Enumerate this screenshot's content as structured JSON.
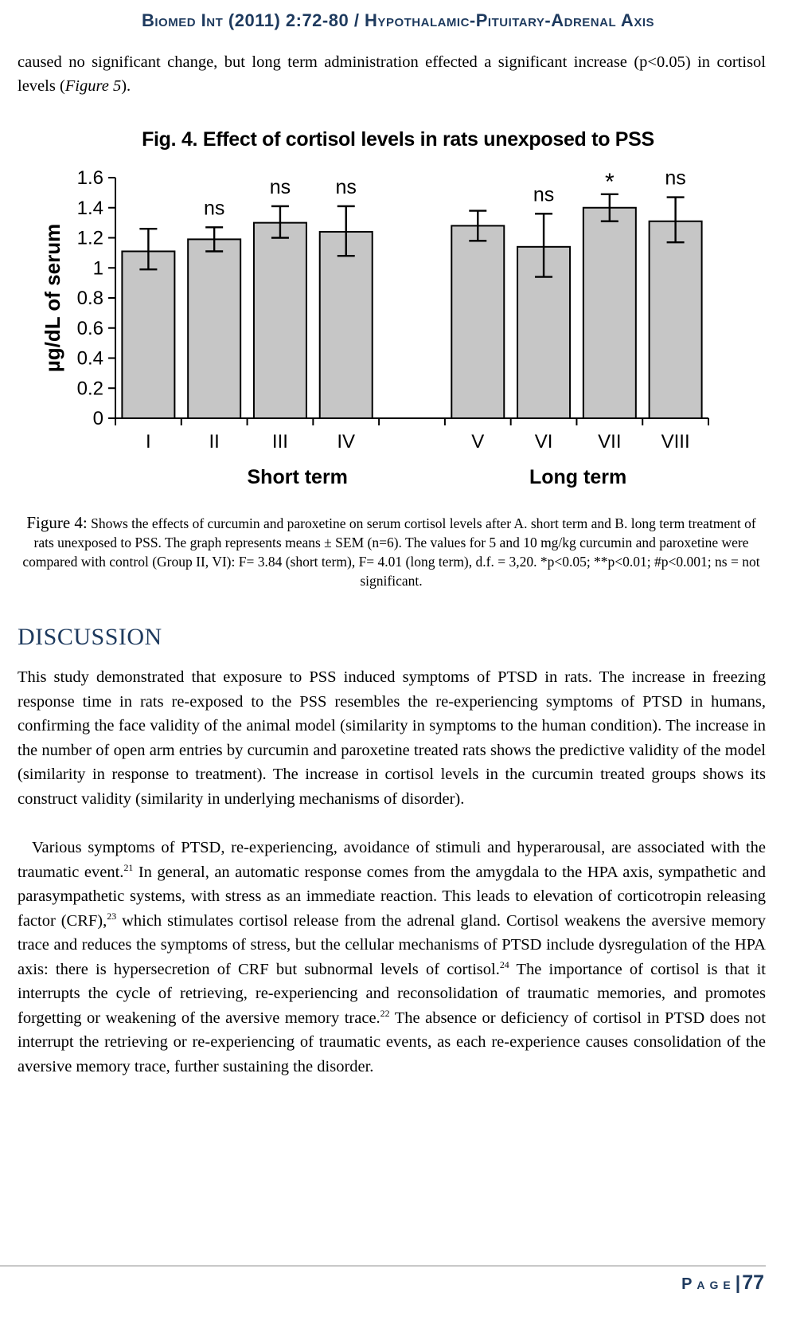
{
  "header": {
    "journal_line": "Biomed Int (2011) 2:72-80 / Hypothalamic-Pituitary-Adrenal Axis"
  },
  "intro_paragraph": [
    {
      "t": "caused no significant change, but long term administration effected a significant increase (p<0.05) in cortisol levels ("
    },
    {
      "t": "Figure 5",
      "s": "i"
    },
    {
      "t": ")."
    }
  ],
  "chart_data": {
    "type": "bar",
    "title": "Fig. 4. Effect of cortisol levels in rats unexposed to PSS",
    "xlabel": "",
    "ylabel": "µg/dL of serum",
    "ylim": [
      0,
      1.6
    ],
    "ytick_labels": [
      "0",
      "0.2",
      "0.4",
      "0.6",
      "0.8",
      "1",
      "1.2",
      "1.4",
      "1.6"
    ],
    "categories": [
      "I",
      "II",
      "III",
      "IV",
      "V",
      "VI",
      "VII",
      "VIII"
    ],
    "values": [
      1.11,
      1.19,
      1.3,
      1.24,
      1.28,
      1.14,
      1.4,
      1.31
    ],
    "error_low": [
      0.99,
      1.11,
      1.2,
      1.08,
      1.18,
      0.94,
      1.31,
      1.17
    ],
    "error_high": [
      1.26,
      1.27,
      1.41,
      1.41,
      1.38,
      1.36,
      1.49,
      1.47
    ],
    "sig_labels": [
      "",
      "ns",
      "ns",
      "ns",
      "",
      "ns",
      "*",
      "ns"
    ],
    "groups": [
      {
        "label": "Short term",
        "indices": [
          0,
          1,
          2,
          3
        ]
      },
      {
        "label": "Long term",
        "indices": [
          4,
          5,
          6,
          7
        ]
      }
    ],
    "grid": false,
    "legend": false,
    "bar_fill": "#c6c6c6",
    "bar_stroke": "#000000"
  },
  "figure_caption": [
    {
      "t": "Figure 4:",
      "s": "lead"
    },
    {
      "t": " Shows the effects of curcumin and paroxetine on serum cortisol levels after A. short term and B. long term treatment of rats unexposed to PSS. The graph represents means ± SEM (n=6). The values for 5 and 10 mg/kg curcumin and paroxetine were compared with control (Group II, VI): F= 3.84 (short term), F= 4.01 (long term), d.f. = 3,20. *p<0.05; **p<0.01; #p<0.001; ns = not significant."
    }
  ],
  "discussion": {
    "heading": "DISCUSSION",
    "paragraph_1": [
      {
        "t": "This study demonstrated that exposure to PSS induced symptoms of PTSD in rats. The increase in freezing response time in rats re-exposed to the PSS resembles the re-experiencing symptoms of PTSD in humans, confirming the face validity of the animal model (similarity in symptoms to the human condition). The increase in the number of open arm entries by curcumin and paroxetine treated rats shows the predictive validity of the model (similarity in response to treatment). The increase in cortisol levels in the curcumin treated groups shows its construct validity (similarity in underlying mechanisms of disorder)."
      }
    ],
    "paragraph_2": [
      {
        "t": "Various symptoms of PTSD, re-experiencing, avoidance of stimuli and hyperarousal, are associated with the traumatic event."
      },
      {
        "t": "21",
        "s": "sup"
      },
      {
        "t": " In general, an automatic response comes from the amygdala to the HPA axis, sympathetic and parasympathetic systems, with stress as an immediate reaction. This leads to elevation of corticotropin releasing factor (CRF),"
      },
      {
        "t": "23",
        "s": "sup"
      },
      {
        "t": " which stimulates cortisol release from the adrenal gland. Cortisol weakens the aversive memory trace and reduces the symptoms of stress, but the cellular mechanisms of PTSD include dysregulation of the HPA axis: there is hypersecretion of CRF but subnormal levels of cortisol."
      },
      {
        "t": "24",
        "s": "sup"
      },
      {
        "t": " The importance of cortisol is that it interrupts the cycle of retrieving, re-experiencing and reconsolidation of traumatic memories, and promotes forgetting or weakening of the aversive memory trace."
      },
      {
        "t": "22",
        "s": "sup"
      },
      {
        "t": " The absence or deficiency of cortisol in PTSD does not interrupt the retrieving or re-experiencing of traumatic events, as each re-experience causes consolidation of the aversive memory trace, further sustaining the disorder."
      }
    ]
  },
  "footer": {
    "label": "Page",
    "separator": "|",
    "number": "77"
  },
  "colors": {
    "accent_navy": "#1e3a5e",
    "bar_fill": "#c6c6c6",
    "footer_rule": "#c9c9c9"
  }
}
